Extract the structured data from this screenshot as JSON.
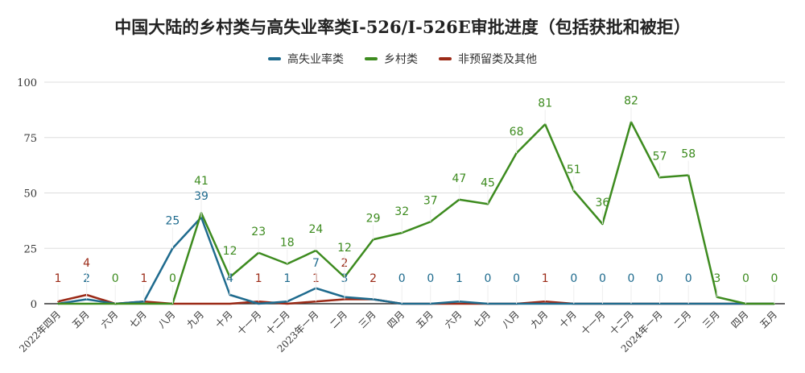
{
  "chart_data": {
    "type": "line",
    "title": "中国大陆的乡村类与高失业率类I-526/I-526E审批进度（包括获批和被拒）",
    "legend_position": "top",
    "grid": true,
    "ylim": [
      0,
      100
    ],
    "yticks": [
      0,
      25,
      50,
      75,
      100
    ],
    "categories": [
      "2022年四月",
      "五月",
      "六月",
      "七月",
      "八月",
      "九月",
      "十月",
      "十一月",
      "十二月",
      "2023年一月",
      "二月",
      "三月",
      "四月",
      "五月",
      "六月",
      "七月",
      "八月",
      "九月",
      "十月",
      "十一月",
      "十二月",
      "2024年一月",
      "二月",
      "三月",
      "四月",
      "五月"
    ],
    "series": [
      {
        "name": "高失业率类",
        "color": "#1f6b8e",
        "values": [
          0,
          2,
          0,
          1,
          25,
          39,
          4,
          0,
          1,
          7,
          3,
          2,
          0,
          0,
          1,
          0,
          0,
          0,
          0,
          0,
          0,
          0,
          0,
          0,
          0,
          0
        ],
        "labeled_points": [
          1,
          4,
          5,
          6,
          8,
          9,
          10,
          12,
          13,
          14,
          15,
          16,
          18,
          19,
          20,
          21,
          22
        ]
      },
      {
        "name": "乡村类",
        "color": "#3d8b1f",
        "values": [
          0,
          0,
          0,
          0,
          0,
          41,
          12,
          23,
          18,
          24,
          12,
          29,
          32,
          37,
          47,
          45,
          68,
          81,
          51,
          36,
          82,
          57,
          58,
          3,
          0,
          0
        ],
        "labeled_points": [
          2,
          4,
          5,
          6,
          7,
          8,
          9,
          10,
          11,
          12,
          13,
          14,
          15,
          16,
          17,
          18,
          19,
          20,
          21,
          22,
          23,
          24,
          25
        ]
      },
      {
        "name": "非预留类及其他",
        "color": "#9b2a17",
        "values": [
          1,
          4,
          0,
          1,
          0,
          0,
          0,
          1,
          0,
          1,
          2,
          2,
          0,
          0,
          0,
          0,
          0,
          1,
          0,
          0,
          0,
          0,
          0,
          0,
          0,
          0
        ],
        "labeled_points": [
          0,
          1,
          3,
          7,
          9,
          10,
          11,
          17
        ]
      }
    ]
  }
}
